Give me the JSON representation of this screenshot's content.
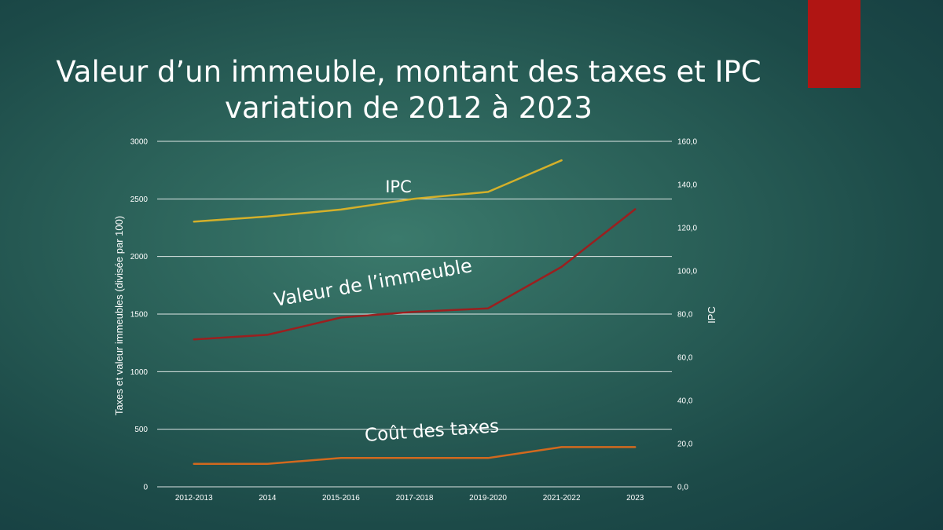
{
  "slide": {
    "title_line1": "Valeur d’un immeuble, montant des taxes et IPC",
    "title_line2": "variation de 2012 à 2023",
    "accent_color": "#b01513"
  },
  "chart_data": {
    "type": "line",
    "categories": [
      "2012-2013",
      "2014",
      "2015-2016",
      "2017-2018",
      "2019-2020",
      "2021-2022",
      "2023"
    ],
    "ylabel": "Taxes et valeur immeubles (divisée par 100)",
    "y2label": "IPC",
    "ylim": [
      0,
      3000
    ],
    "y2lim": [
      0,
      160
    ],
    "yticks": [
      "0",
      "500",
      "1000",
      "1500",
      "2000",
      "2500",
      "3000"
    ],
    "y2ticks": [
      "0,0",
      "20,0",
      "40,0",
      "60,0",
      "80,0",
      "100,0",
      "120,0",
      "140,0",
      "160,0"
    ],
    "grid": true,
    "series": [
      {
        "name": "IPC",
        "axis": "right",
        "color": "#d4b02a",
        "values": [
          122.8,
          125.2,
          128.4,
          133.4,
          136.6,
          151.2,
          null
        ]
      },
      {
        "name": "Valeur de l’immeuble",
        "axis": "left",
        "color": "#9b1f1f",
        "values": [
          1280,
          1320,
          1470,
          1520,
          1550,
          1910,
          2410
        ]
      },
      {
        "name": "Coût des taxes",
        "axis": "left",
        "color": "#d2691e",
        "values": [
          200,
          200,
          250,
          250,
          250,
          345,
          345
        ]
      }
    ]
  }
}
